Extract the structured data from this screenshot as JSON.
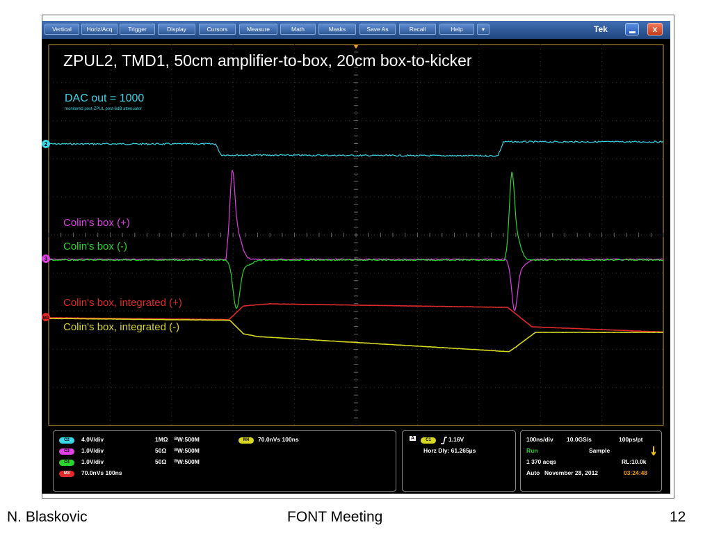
{
  "menu": {
    "items": [
      "Vertical",
      "Horiz/Acq",
      "Trigger",
      "Display",
      "Cursors",
      "Measure",
      "Math",
      "Masks",
      "Save As",
      "Recall",
      "Help",
      "▾"
    ],
    "brand": "Tek",
    "close_glyph": "x"
  },
  "plot": {
    "title": "ZPUL2, TMD1, 50cm amplifier-to-box, 20cm box-to-kicker",
    "dac_label": "DAC out = 1000",
    "dac_sublabel": "monitored post-ZPUL post-6dB attenuator",
    "pos_label": "Colin's box (+)",
    "neg_label": "Colin's box (-)",
    "intpos_label": "Colin's box, integrated (+)",
    "intneg_label": "Colin's box, integrated (-)",
    "marker_ch2": "2",
    "marker_ch3": "3",
    "marker_m3": "M3",
    "trace_colors": {
      "ch2": "#39d7e8",
      "ch3": "#e040e6",
      "ch4": "#2ed42e",
      "m3": "#e02a2a",
      "m4": "#d8d824"
    }
  },
  "status": {
    "ch2": {
      "badge": "C2",
      "scale": "4.0V/div",
      "coupling": "1MΩ",
      "bw": "ᴮW:500M"
    },
    "ch3": {
      "badge": "C3",
      "scale": "1.0V/div",
      "coupling": "50Ω",
      "bw": "ᴮW:500M"
    },
    "ch4": {
      "badge": "C4",
      "scale": "1.0V/div",
      "coupling": "50Ω",
      "bw": "ᴮW:500M"
    },
    "m3": {
      "badge": "M3",
      "scale": "70.0nVs 100ns"
    },
    "m4": {
      "badge": "M4",
      "scale": "70.0nVs 100ns"
    },
    "trigger": {
      "mode": "A",
      "source": "C1",
      "slope_icon": "rising-edge-icon",
      "level": "1.16V",
      "horz_dly": "Horz Dly:  61.265µs"
    },
    "acq": {
      "timebase": "100ns/div",
      "sample_rate": "10.0GS/s",
      "resolution": "100ps/pt",
      "run": "Run",
      "mode": "Sample",
      "acqs": "1 370 acqs",
      "record_length": "RL:10.0k",
      "trigger_mode": "Auto",
      "date": "November 28, 2012",
      "time": "03:24:48"
    }
  },
  "footer": {
    "author": "N. Blaskovic",
    "meeting": "FONT Meeting",
    "page": "12"
  }
}
